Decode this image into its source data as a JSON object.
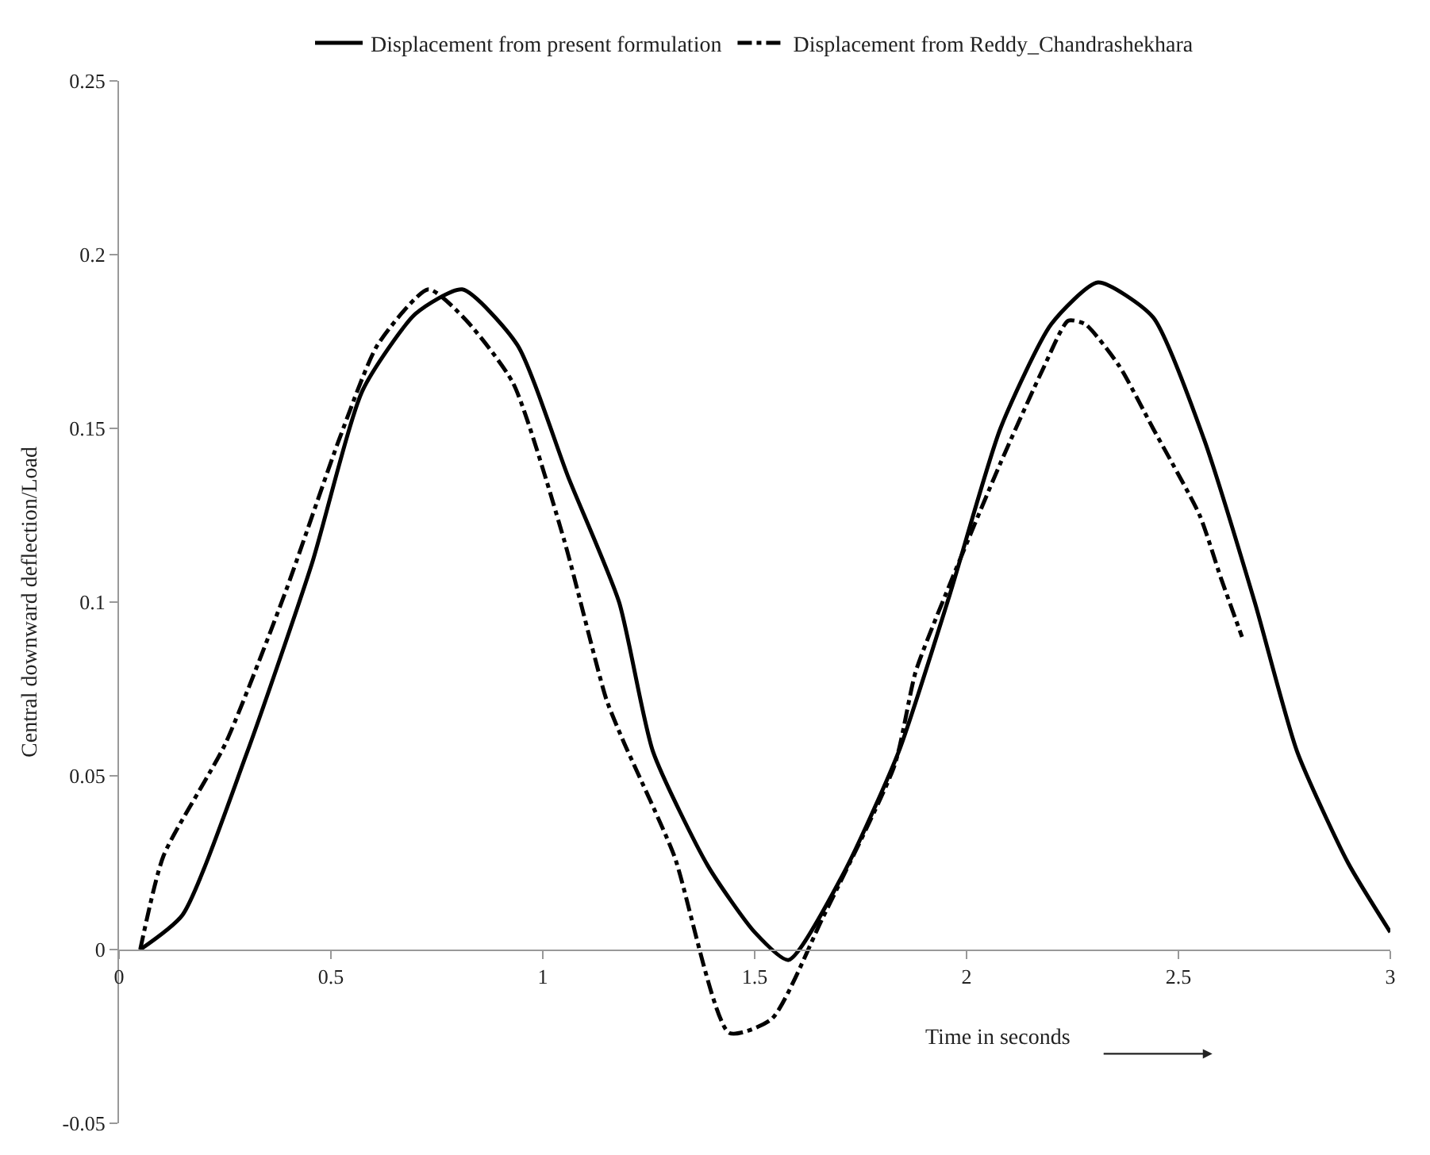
{
  "chart_data": {
    "type": "line",
    "xlabel": "Time in seconds",
    "ylabel": "Central downward deflection/Load",
    "xlim": [
      0,
      3
    ],
    "xticks": [
      0,
      0.5,
      1,
      1.5,
      2,
      2.5,
      3
    ],
    "ylim": [
      -0.05,
      0.25
    ],
    "yticks": [
      -0.05,
      0,
      0.05,
      0.1,
      0.15,
      0.2,
      0.25
    ],
    "legend": "top",
    "marker": "none",
    "series": [
      {
        "name": "Displacement from present formulation",
        "color": "#000000",
        "line_style": "solid",
        "x": [
          0.05,
          0.15,
          0.3,
          0.455,
          0.575,
          0.7,
          0.81,
          0.94,
          1.06,
          1.18,
          1.26,
          1.39,
          1.5,
          1.58,
          1.71,
          1.84,
          1.96,
          2.08,
          2.2,
          2.31,
          2.44,
          2.56,
          2.68,
          2.78,
          2.9,
          3.0
        ],
        "values": [
          0,
          0.01,
          0.056,
          0.111,
          0.161,
          0.183,
          0.19,
          0.174,
          0.136,
          0.1,
          0.057,
          0.024,
          0.005,
          -0.003,
          0.022,
          0.057,
          0.102,
          0.15,
          0.18,
          0.192,
          0.182,
          0.147,
          0.1,
          0.057,
          0.025,
          0.005
        ]
      },
      {
        "name": "Displacement from Reddy_Chandrashekhara",
        "color": "#000000",
        "line_style": "dashdot",
        "x": [
          0.05,
          0.105,
          0.25,
          0.39,
          0.52,
          0.61,
          0.73,
          0.82,
          0.93,
          1.05,
          1.15,
          1.19,
          1.31,
          1.44,
          1.54,
          1.66,
          1.83,
          1.88,
          1.96,
          2.08,
          2.18,
          2.24,
          2.28,
          2.36,
          2.44,
          2.55,
          2.6,
          2.65
        ],
        "values": [
          0,
          0.027,
          0.059,
          0.102,
          0.147,
          0.174,
          0.19,
          0.181,
          0.163,
          0.118,
          0.072,
          0.06,
          0.027,
          -0.024,
          -0.02,
          0.009,
          0.053,
          0.08,
          0.105,
          0.14,
          0.167,
          0.181,
          0.18,
          0.168,
          0.15,
          0.125,
          0.107,
          0.09
        ]
      }
    ]
  }
}
